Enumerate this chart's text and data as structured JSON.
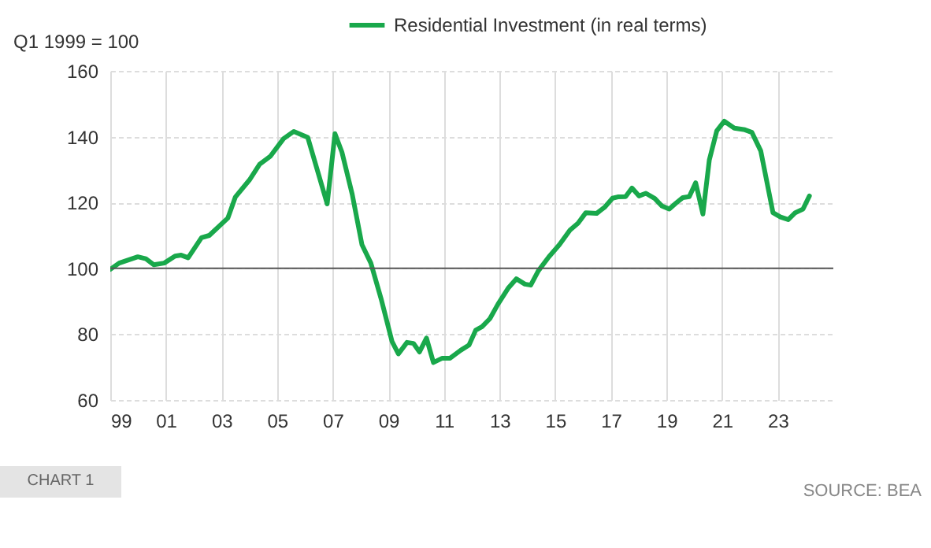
{
  "chart_data": {
    "type": "line",
    "ylabel": "Q1 1999 = 100",
    "legend": "top",
    "grid": true,
    "line_style": "solid",
    "marker": "none",
    "xlim": [
      1999,
      2025
    ],
    "xticks": [
      {
        "value": 1999,
        "label": "99"
      },
      {
        "value": 2001,
        "label": "01"
      },
      {
        "value": 2003,
        "label": "03"
      },
      {
        "value": 2005,
        "label": "05"
      },
      {
        "value": 2007,
        "label": "07"
      },
      {
        "value": 2009,
        "label": "09"
      },
      {
        "value": 2011,
        "label": "11"
      },
      {
        "value": 2013,
        "label": "13"
      },
      {
        "value": 2015,
        "label": "15"
      },
      {
        "value": 2017,
        "label": "17"
      },
      {
        "value": 2019,
        "label": "19"
      },
      {
        "value": 2021,
        "label": "21"
      },
      {
        "value": 2023,
        "label": "23"
      }
    ],
    "ylim": [
      60,
      160
    ],
    "yticks": [
      60,
      80,
      100,
      120,
      140,
      160
    ],
    "ref_lines": [
      {
        "axis": "y",
        "value": 100,
        "color": "#555555"
      }
    ],
    "annotations": [
      "CHART 1",
      "SOURCE: BEA"
    ],
    "series": [
      {
        "name": "Residential Investment (in real terms)",
        "color": "#19a84b",
        "x": [
          1999.0,
          1999.32,
          1999.99,
          2000.28,
          2000.56,
          2000.94,
          2001.33,
          2001.55,
          2001.8,
          2002.28,
          2002.56,
          2003.23,
          2003.5,
          2004.0,
          2004.37,
          2004.75,
          2005.23,
          2005.6,
          2006.1,
          2006.8,
          2007.08,
          2007.33,
          2007.7,
          2008.05,
          2008.37,
          2008.75,
          2009.13,
          2009.36,
          2009.67,
          2009.9,
          2010.12,
          2010.37,
          2010.62,
          2010.94,
          2011.22,
          2011.6,
          2011.9,
          2012.14,
          2012.37,
          2012.65,
          2012.94,
          2013.32,
          2013.6,
          2013.91,
          2014.12,
          2014.39,
          2014.77,
          2015.15,
          2015.53,
          2015.82,
          2016.1,
          2016.49,
          2016.77,
          2017.06,
          2017.25,
          2017.53,
          2017.76,
          2018.01,
          2018.26,
          2018.58,
          2018.83,
          2019.1,
          2019.34,
          2019.59,
          2019.82,
          2020.05,
          2020.31,
          2020.54,
          2020.81,
          2021.08,
          2021.44,
          2021.82,
          2022.07,
          2022.39,
          2022.83,
          2023.1,
          2023.38,
          2023.63,
          2023.91,
          2024.14
        ],
        "values": [
          99.7,
          101.6,
          103.5,
          102.9,
          101.1,
          101.6,
          103.7,
          104,
          103.2,
          109.3,
          110,
          115.3,
          121.7,
          126.8,
          131.6,
          134,
          139.4,
          141.6,
          139.8,
          119.6,
          140.9,
          135.3,
          122.5,
          107.2,
          101.6,
          90.4,
          77.8,
          74,
          77.5,
          77.2,
          74.6,
          78.8,
          71.4,
          72.7,
          72.7,
          75.1,
          76.7,
          81.2,
          82.3,
          84.7,
          89.1,
          94.1,
          96.8,
          95.2,
          94.9,
          99.2,
          103.5,
          107.2,
          111.6,
          113.7,
          116.9,
          116.7,
          118.5,
          121.3,
          121.7,
          121.8,
          124.4,
          122,
          122.8,
          121.2,
          119,
          118,
          119.8,
          121.5,
          121.8,
          126,
          116.5,
          132.9,
          141.8,
          144.7,
          142.6,
          142.1,
          141.3,
          135.7,
          116.9,
          115.6,
          114.8,
          116.9,
          118,
          122
        ]
      }
    ]
  }
}
